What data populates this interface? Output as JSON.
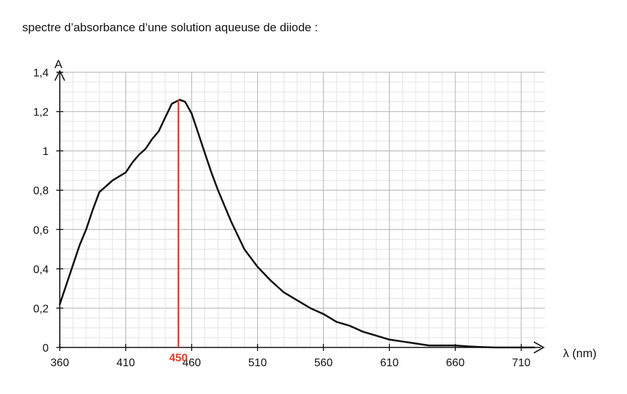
{
  "caption": "spectre d’absorbance d’une solution aqueuse de diiode :",
  "chart_data": {
    "type": "line",
    "title": "",
    "xlabel": "λ (nm)",
    "ylabel": "A",
    "xlim": [
      360,
      728
    ],
    "ylim": [
      0,
      1.4
    ],
    "x_ticks": [
      360,
      410,
      460,
      510,
      560,
      610,
      660,
      710
    ],
    "x_tick_labels": [
      "360",
      "410",
      "460",
      "510",
      "560",
      "610",
      "660",
      "710"
    ],
    "y_ticks": [
      0,
      0.2,
      0.4,
      0.6,
      0.8,
      1,
      1.2,
      1.4
    ],
    "y_tick_labels": [
      "0",
      "0,2",
      "0,4",
      "0,6",
      "0,8",
      "1",
      "1,2",
      "1,4"
    ],
    "grid": true,
    "series": [
      {
        "color": "#111111",
        "x": [
          360,
          365,
          370,
          375,
          380,
          385,
          390,
          395,
          400,
          405,
          410,
          415,
          420,
          425,
          430,
          435,
          440,
          445,
          448,
          451,
          455,
          460,
          465,
          470,
          475,
          480,
          490,
          500,
          510,
          520,
          530,
          540,
          550,
          560,
          570,
          580,
          590,
          600,
          610,
          620,
          630,
          640,
          650,
          660,
          670,
          680,
          690,
          700,
          710,
          720
        ],
        "y": [
          0.22,
          0.32,
          0.42,
          0.52,
          0.6,
          0.7,
          0.79,
          0.82,
          0.85,
          0.87,
          0.89,
          0.94,
          0.98,
          1.01,
          1.06,
          1.1,
          1.17,
          1.24,
          1.25,
          1.26,
          1.25,
          1.19,
          1.09,
          0.99,
          0.89,
          0.8,
          0.64,
          0.5,
          0.41,
          0.34,
          0.28,
          0.24,
          0.2,
          0.17,
          0.13,
          0.11,
          0.08,
          0.06,
          0.04,
          0.03,
          0.02,
          0.01,
          0.01,
          0.01,
          0.005,
          0.002,
          0,
          0,
          0,
          0
        ]
      }
    ],
    "marker": {
      "x": 450,
      "label": "450",
      "color": "#e83a2a"
    }
  }
}
